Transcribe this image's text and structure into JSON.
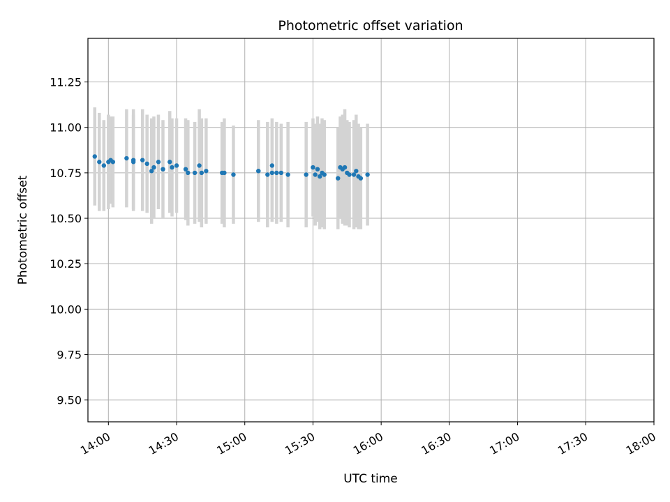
{
  "chart_data": {
    "type": "scatter",
    "title": "Photometric offset variation",
    "xlabel": "UTC time",
    "ylabel": "Photometric offset",
    "grid": true,
    "xlim": [
      "13:51",
      "18:00"
    ],
    "ylim": [
      9.38,
      11.49
    ],
    "x_ticks": [
      "14:00",
      "14:30",
      "15:00",
      "15:30",
      "16:00",
      "16:30",
      "17:00",
      "17:30",
      "18:00"
    ],
    "y_ticks": [
      "9.50",
      "9.75",
      "10.00",
      "10.25",
      "10.50",
      "10.75",
      "11.00",
      "11.25"
    ],
    "colors": {
      "points": "#1f77b4",
      "error_bars": "#d3d3d3",
      "grid": "#b0b0b0"
    },
    "series": [
      {
        "x": [
          "13:54",
          "13:56",
          "13:58",
          "14:00",
          "14:01",
          "14:02",
          "14:08",
          "14:11",
          "14:11",
          "14:15",
          "14:17",
          "14:19",
          "14:20",
          "14:22",
          "14:24",
          "14:27",
          "14:28",
          "14:30",
          "14:34",
          "14:35",
          "14:38",
          "14:40",
          "14:41",
          "14:43",
          "14:50",
          "14:51",
          "14:55",
          "15:06",
          "15:06",
          "15:10",
          "15:12",
          "15:12",
          "15:14",
          "15:16",
          "15:19",
          "15:27",
          "15:30",
          "15:31",
          "15:32",
          "15:33",
          "15:34",
          "15:35",
          "15:41",
          "15:42",
          "15:43",
          "15:44",
          "15:45",
          "15:46",
          "15:48",
          "15:49",
          "15:50",
          "15:51",
          "15:54"
        ],
        "y": [
          10.84,
          10.81,
          10.79,
          10.81,
          10.82,
          10.81,
          10.83,
          10.82,
          10.81,
          10.82,
          10.8,
          10.76,
          10.78,
          10.81,
          10.77,
          10.81,
          10.78,
          10.79,
          10.77,
          10.75,
          10.75,
          10.79,
          10.75,
          10.76,
          10.75,
          10.75,
          10.74,
          10.76,
          10.76,
          10.74,
          10.75,
          10.79,
          10.75,
          10.75,
          10.74,
          10.74,
          10.78,
          10.74,
          10.77,
          10.73,
          10.75,
          10.74,
          10.72,
          10.78,
          10.77,
          10.78,
          10.75,
          10.74,
          10.74,
          10.76,
          10.73,
          10.72,
          10.74
        ],
        "yerr": [
          0.27,
          0.27,
          0.25,
          0.26,
          0.24,
          0.25,
          0.27,
          0.28,
          0.26,
          0.28,
          0.27,
          0.29,
          0.28,
          0.26,
          0.27,
          0.28,
          0.27,
          0.26,
          0.28,
          0.29,
          0.28,
          0.31,
          0.3,
          0.29,
          0.28,
          0.3,
          0.27,
          0.26,
          0.28,
          0.29,
          0.27,
          0.26,
          0.28,
          0.27,
          0.29,
          0.29,
          0.27,
          0.28,
          0.29,
          0.29,
          0.3,
          0.3,
          0.28,
          0.28,
          0.3,
          0.32,
          0.29,
          0.29,
          0.3,
          0.31,
          0.29,
          0.28,
          0.28
        ]
      }
    ]
  }
}
